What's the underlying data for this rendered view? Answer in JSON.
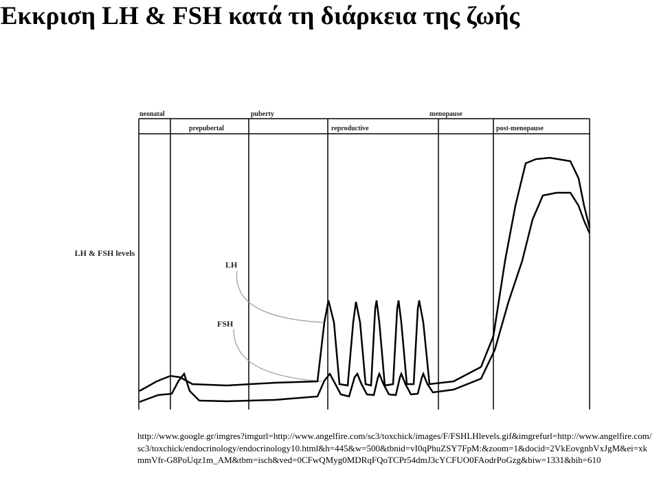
{
  "header": {
    "title": "Έκκριση LH & FSH κατά τη διάρκεια της ζωής"
  },
  "figure": {
    "phases_top": [
      "neonatal",
      "puberty",
      "menopause"
    ],
    "phases_bottom": [
      "prepubertal",
      "reproductive",
      "post-menopause"
    ],
    "y_label": "LH & FSH levels",
    "curve_labels": [
      "LH",
      "FSH"
    ]
  },
  "source": "http://www.google.gr/imgres?imgurl=http://www.angelfire.com/sc3/toxchick/images/F/FSHLHlevels.gif&imgrefurl=http://www.angelfire.com/sc3/toxchick/endocrinology/endocrinology10.html&h=445&w=500&tbnid=vI0qPhuZSY7FpM:&zoom=1&docid=2VkEovgnbVxJgM&ei=xkmmVfr-G8PoUqz1m_AM&tbm=isch&ved=0CFwQMyg0MDRqFQoTCPr54dmJ3cYCFUO0FAodrPoGzg&biw=1331&bih=610"
}
